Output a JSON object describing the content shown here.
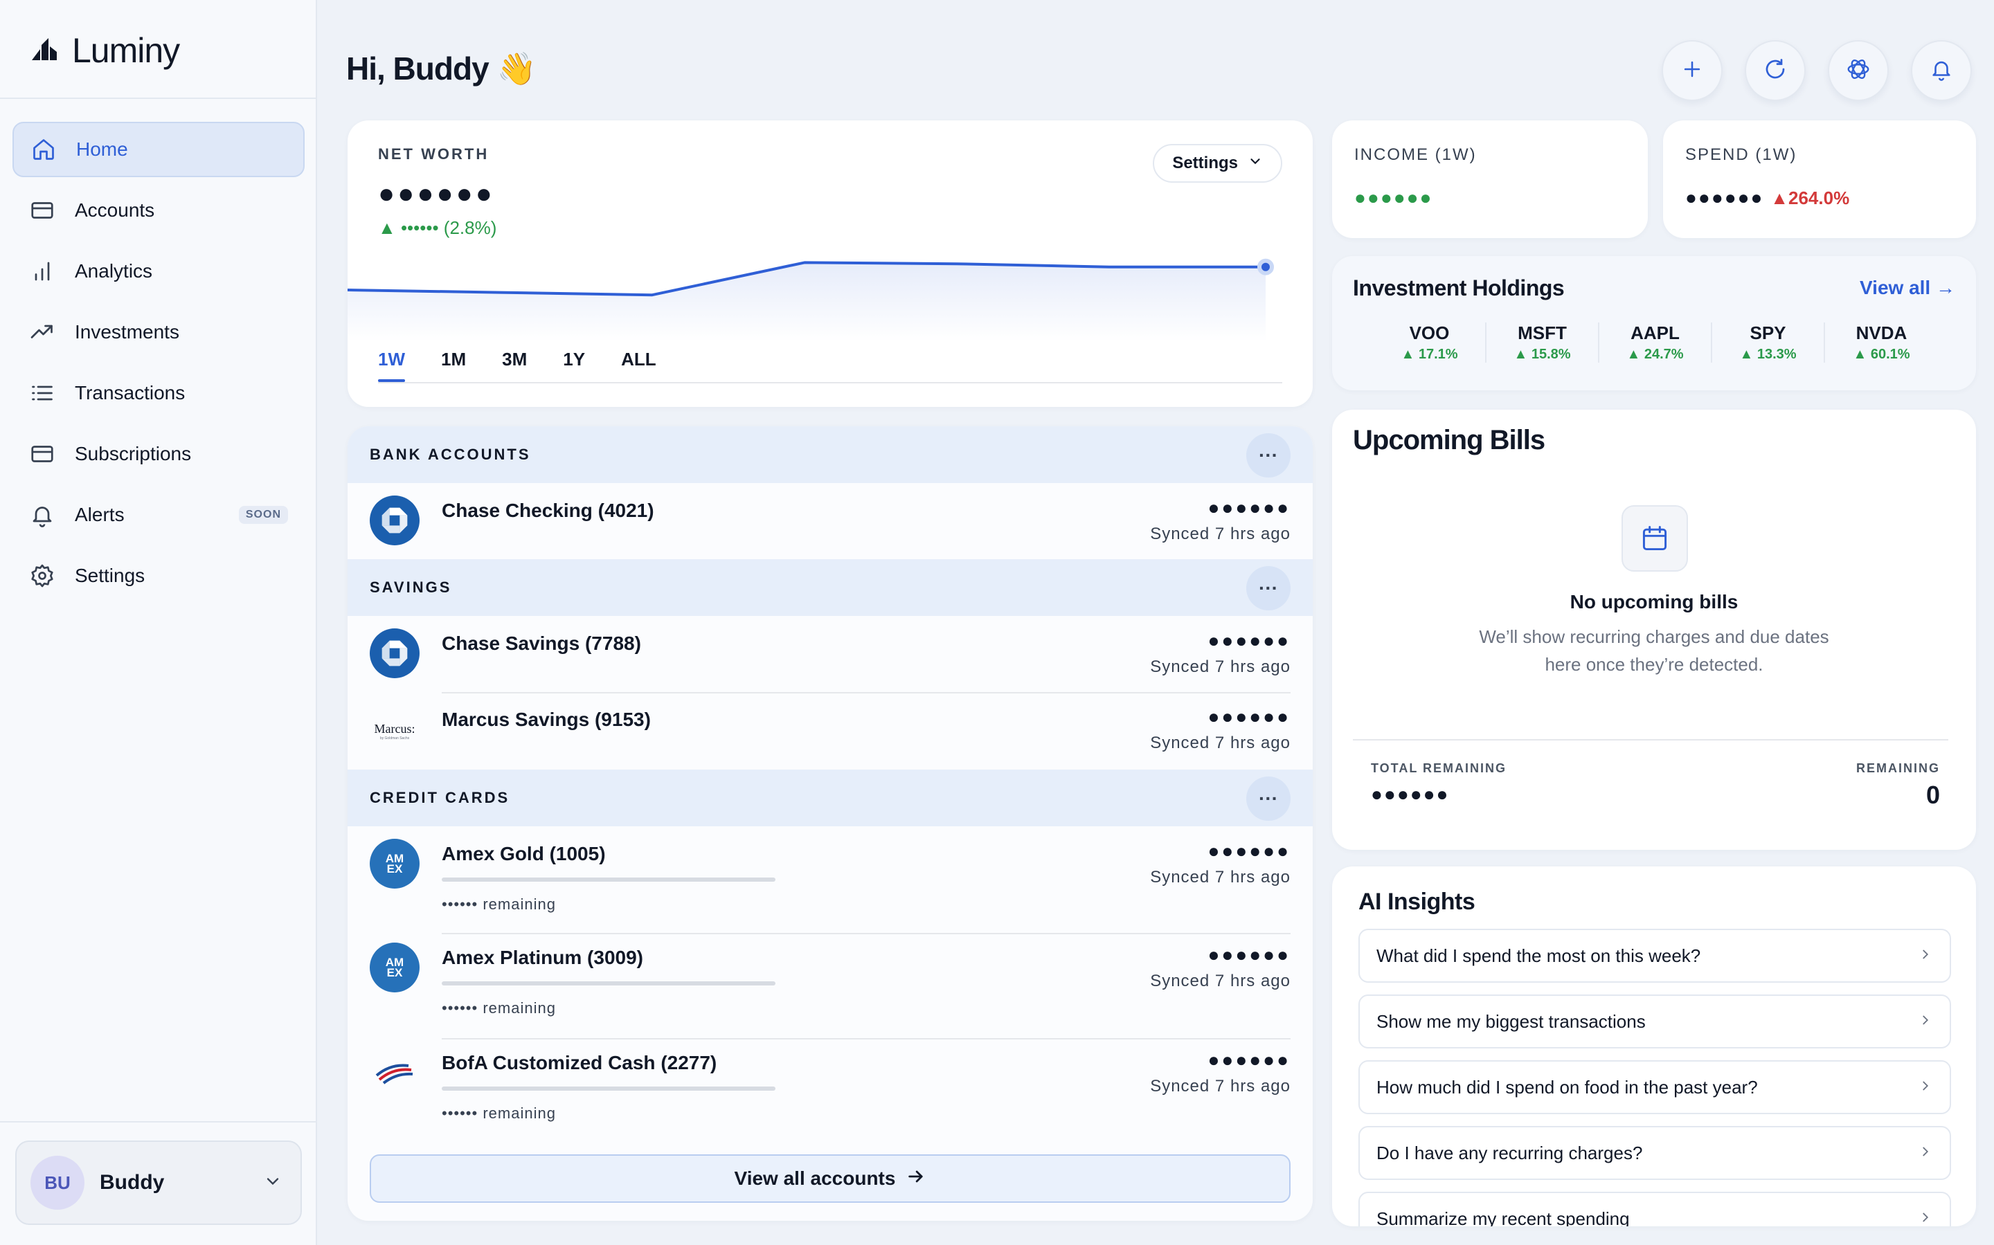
{
  "app": {
    "name": "Luminy"
  },
  "sidebar": {
    "items": [
      {
        "label": "Home",
        "icon": "home-icon",
        "active": true
      },
      {
        "label": "Accounts",
        "icon": "card-icon"
      },
      {
        "label": "Analytics",
        "icon": "bar-chart-icon"
      },
      {
        "label": "Investments",
        "icon": "trend-up-icon"
      },
      {
        "label": "Transactions",
        "icon": "list-icon"
      },
      {
        "label": "Subscriptions",
        "icon": "card-icon"
      },
      {
        "label": "Alerts",
        "icon": "bell-icon",
        "badge": "SOON"
      },
      {
        "label": "Settings",
        "icon": "gear-icon"
      }
    ],
    "user": {
      "initials": "BU",
      "name": "Buddy"
    }
  },
  "header": {
    "greeting": "Hi, Buddy 👋"
  },
  "net_worth": {
    "label": "NET WORTH",
    "value": "●●●●●●",
    "change": "▲ •••••• (2.8%)",
    "settings_label": "Settings",
    "ranges": [
      "1W",
      "1M",
      "3M",
      "1Y",
      "ALL"
    ],
    "selected_range": "1W",
    "accent": "#2f5fd6"
  },
  "chart_data": {
    "type": "line",
    "title": "",
    "x": [
      0,
      1,
      2,
      3,
      4,
      5,
      6
    ],
    "series": [
      {
        "values": [
          0.5,
          0.46,
          0.42,
          0.94,
          0.92,
          0.87,
          0.87
        ]
      }
    ],
    "ylim": [
      0,
      1
    ],
    "grid": false
  },
  "income": {
    "label": "INCOME (1W)",
    "value": "●●●●●●"
  },
  "spend": {
    "label": "SPEND (1W)",
    "value": "●●●●●●",
    "change": "▲264.0%"
  },
  "holdings": {
    "title": "Investment Holdings",
    "view_all": "View all →",
    "items": [
      {
        "symbol": "VOO",
        "change": "▲ 17.1%"
      },
      {
        "symbol": "MSFT",
        "change": "▲ 15.8%"
      },
      {
        "symbol": "AAPL",
        "change": "▲ 24.7%"
      },
      {
        "symbol": "SPY",
        "change": "▲ 13.3%"
      },
      {
        "symbol": "NVDA",
        "change": "▲ 60.1%"
      }
    ]
  },
  "bills": {
    "title": "Upcoming Bills",
    "empty_title": "No upcoming bills",
    "empty_line1": "We’ll show recurring charges and due dates",
    "empty_line2": "here once they’re detected.",
    "total_label": "TOTAL REMAINING",
    "total_value": "●●●●●●",
    "remaining_label": "REMAINING",
    "remaining_value": "0"
  },
  "ai": {
    "title": "AI Insights",
    "prompts": [
      "What did I spend the most on this week?",
      "Show me my biggest transactions",
      "How much did I spend on food in the past year?",
      "Do I have any recurring charges?",
      "Summarize my recent spending"
    ]
  },
  "accounts": {
    "bank_title": "BANK ACCOUNTS",
    "savings_title": "SAVINGS",
    "credit_title": "CREDIT CARDS",
    "more": "···",
    "bank": [
      {
        "name": "Chase Checking (4021)",
        "balance": "●●●●●●",
        "sync": "Synced 7 hrs ago"
      }
    ],
    "savings": [
      {
        "name": "Chase Savings (7788)",
        "balance": "●●●●●●",
        "sync": "Synced 7 hrs ago"
      },
      {
        "name": "Marcus Savings (9153)",
        "balance": "●●●●●●",
        "sync": "Synced 7 hrs ago",
        "logo_text": "Marcus:",
        "logo_sub": "by Goldman Sachs"
      }
    ],
    "credit": [
      {
        "name": "Amex Gold (1005)",
        "balance": "●●●●●●",
        "sync": "Synced 7 hrs ago",
        "remaining": "•••••• remaining",
        "logo_text": "AM EX",
        "utilization": 0
      },
      {
        "name": "Amex Platinum (3009)",
        "balance": "●●●●●●",
        "sync": "Synced 7 hrs ago",
        "remaining": "•••••• remaining",
        "logo_text": "AM EX",
        "utilization": 0
      },
      {
        "name": "BofA Customized Cash (2277)",
        "balance": "●●●●●●",
        "sync": "Synced 7 hrs ago",
        "remaining": "•••••• remaining",
        "utilization": 0
      }
    ],
    "view_all": "View all accounts"
  }
}
